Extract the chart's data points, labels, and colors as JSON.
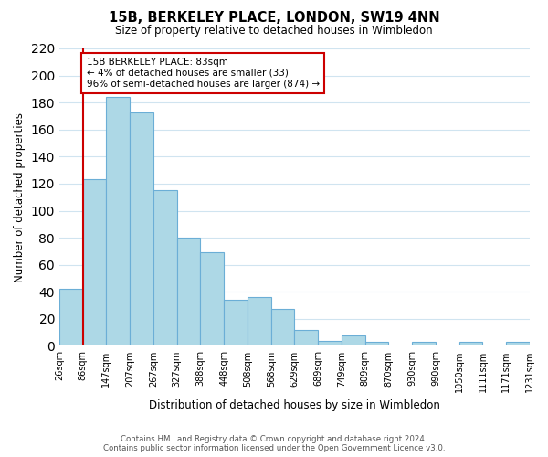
{
  "title": "15B, BERKELEY PLACE, LONDON, SW19 4NN",
  "subtitle": "Size of property relative to detached houses in Wimbledon",
  "xlabel": "Distribution of detached houses by size in Wimbledon",
  "ylabel": "Number of detached properties",
  "bar_color": "#add8e6",
  "bar_edge_color": "#6baed6",
  "background_color": "#ffffff",
  "grid_color": "#d0e4f0",
  "bin_edges": [
    "26sqm",
    "86sqm",
    "147sqm",
    "207sqm",
    "267sqm",
    "327sqm",
    "388sqm",
    "448sqm",
    "508sqm",
    "568sqm",
    "629sqm",
    "689sqm",
    "749sqm",
    "809sqm",
    "870sqm",
    "930sqm",
    "990sqm",
    "1050sqm",
    "1111sqm",
    "1171sqm",
    "1231sqm"
  ],
  "values": [
    42,
    123,
    184,
    173,
    115,
    80,
    69,
    34,
    36,
    27,
    12,
    4,
    8,
    3,
    0,
    3,
    0,
    3,
    0,
    3
  ],
  "ylim": [
    0,
    220
  ],
  "yticks": [
    0,
    20,
    40,
    60,
    80,
    100,
    120,
    140,
    160,
    180,
    200,
    220
  ],
  "property_line_x": 1.0,
  "property_line_color": "#cc0000",
  "annotation_text": "15B BERKELEY PLACE: 83sqm\n← 4% of detached houses are smaller (33)\n96% of semi-detached houses are larger (874) →",
  "annotation_box_color": "#ffffff",
  "annotation_box_edge": "#cc0000",
  "footer_line1": "Contains HM Land Registry data © Crown copyright and database right 2024.",
  "footer_line2": "Contains public sector information licensed under the Open Government Licence v3.0."
}
